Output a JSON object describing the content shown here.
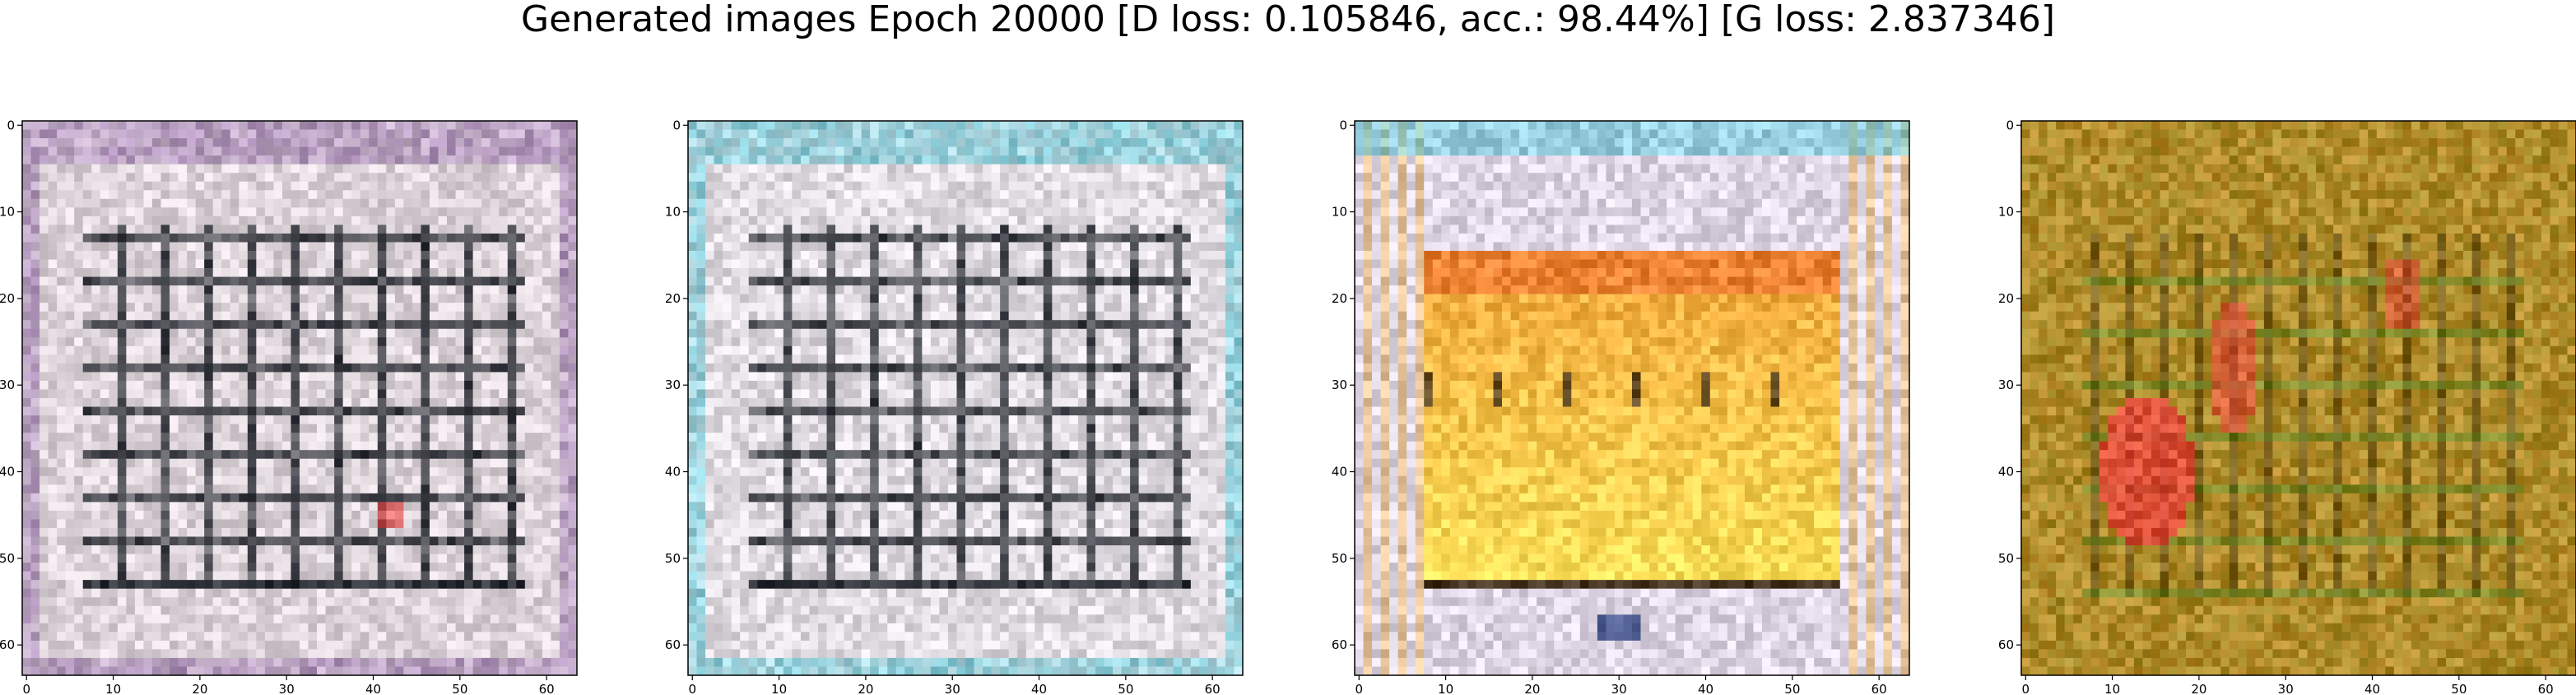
{
  "figure": {
    "title": "Generated images Epoch 20000 [D loss: 0.105846, acc.: 98.44%] [G loss: 2.837346]"
  },
  "axes": {
    "ticks": [
      "0",
      "10",
      "20",
      "30",
      "40",
      "50",
      "60"
    ],
    "xlim": [
      0,
      63
    ],
    "ylim": [
      63,
      0
    ]
  },
  "panels": [
    {
      "id": "panel-1",
      "palette": "pale-grid",
      "colors": {
        "base": "#dcd4d8",
        "ink": "#2c2f36",
        "accent": "#e24a4a"
      }
    },
    {
      "id": "panel-2",
      "palette": "pale-grid-cyan",
      "colors": {
        "base": "#dfdbe0",
        "ink": "#30343a",
        "accent": "#58c6d6"
      }
    },
    {
      "id": "panel-3",
      "palette": "orange-frame",
      "colors": {
        "base": "#f3a63c",
        "ink": "#3b2a14",
        "accent": "#ffe15a"
      }
    },
    {
      "id": "panel-4",
      "palette": "olive-red",
      "colors": {
        "base": "#b88b2a",
        "ink": "#4a3a10",
        "accent": "#e8423a"
      }
    }
  ]
}
